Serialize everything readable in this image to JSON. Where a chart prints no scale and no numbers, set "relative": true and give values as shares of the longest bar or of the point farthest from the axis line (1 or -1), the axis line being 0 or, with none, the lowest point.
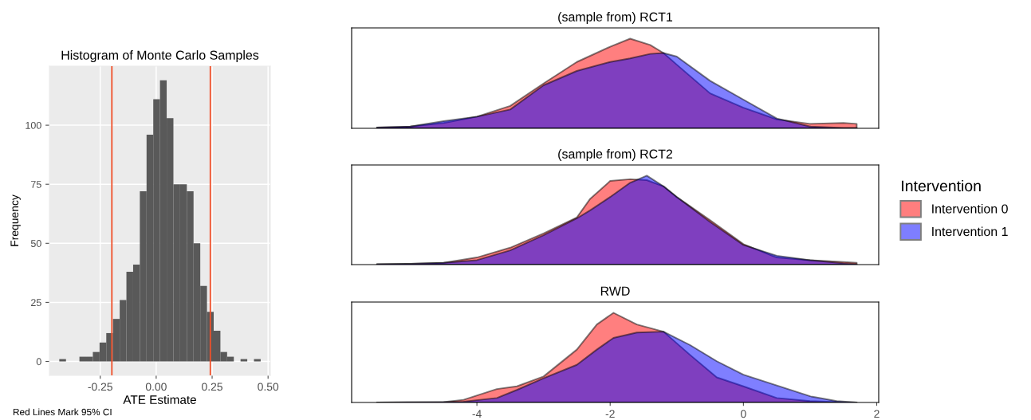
{
  "chart_data": [
    {
      "type": "histogram",
      "title": "Histogram of Monte Carlo Samples",
      "xlabel": "ATE Estimate",
      "ylabel": "Frequency",
      "color": "#595959",
      "bins": [
        -0.433,
        -0.403,
        -0.373,
        -0.343,
        -0.313,
        -0.283,
        -0.253,
        -0.223,
        -0.193,
        -0.163,
        -0.133,
        -0.103,
        -0.073,
        -0.043,
        -0.013,
        0.017,
        0.047,
        0.077,
        0.107,
        0.137,
        0.167,
        0.197,
        0.227,
        0.257,
        0.287,
        0.317,
        0.347,
        0.377,
        0.407,
        0.437,
        0.467
      ],
      "values": [
        1,
        0,
        0,
        2,
        2,
        4,
        8,
        12,
        18,
        26,
        38,
        41,
        72,
        96,
        111,
        119,
        103,
        75,
        75,
        72,
        50,
        32,
        21,
        13,
        4,
        2,
        0,
        1,
        0,
        1
      ],
      "xlim": [
        -0.477,
        0.51
      ],
      "ylim": [
        -5.9,
        125
      ],
      "xticks": [
        -0.25,
        {
          "value": 0,
          "label": "0.00"
        },
        0.25,
        {
          "value": 0.5,
          "label": "0.50"
        }
      ],
      "yticks": [
        0,
        25,
        50,
        75,
        100
      ],
      "grid": true,
      "ref_lines": [
        {
          "axis": "x",
          "value": -0.198,
          "color": "#f0502a"
        },
        {
          "axis": "x",
          "value": 0.242,
          "color": "#f0502a"
        }
      ],
      "annotations": [
        "Red Lines Mark 95% CI"
      ]
    },
    {
      "type": "area",
      "title": "(sample from) RCT1",
      "relative": true,
      "xlim": [
        -5.88,
        2.03
      ],
      "xticks": [
        -4,
        -2,
        0,
        2
      ],
      "tick_labels": false,
      "legend": "right",
      "legend_title": "Intervention",
      "series": [
        {
          "name": "Intervention 0",
          "color": "#ff0000",
          "x": [
            -5.5,
            -5.0,
            -4.5,
            -4.0,
            -3.5,
            -3.0,
            -2.5,
            -2.0,
            -1.7,
            -1.4,
            -1.2,
            -1.0,
            -0.5,
            0.0,
            0.5,
            1.0,
            1.5,
            1.7
          ],
          "values": [
            0.01,
            0.02,
            0.06,
            0.13,
            0.25,
            0.5,
            0.74,
            0.91,
            1.0,
            0.93,
            0.84,
            0.71,
            0.39,
            0.23,
            0.1,
            0.05,
            0.06,
            0.05
          ]
        },
        {
          "name": "Intervention 1",
          "color": "#0000ff",
          "x": [
            -5.5,
            -5.0,
            -4.5,
            -4.0,
            -3.5,
            -3.0,
            -2.5,
            -2.0,
            -1.7,
            -1.4,
            -1.2,
            -1.0,
            -0.5,
            0.0,
            0.5,
            1.0,
            1.5,
            1.7
          ],
          "values": [
            0.01,
            0.02,
            0.08,
            0.13,
            0.21,
            0.48,
            0.64,
            0.74,
            0.78,
            0.83,
            0.84,
            0.8,
            0.53,
            0.32,
            0.11,
            0.02,
            0.005,
            0.005
          ]
        }
      ]
    },
    {
      "type": "area",
      "title": "(sample from) RCT2",
      "relative": true,
      "xlim": [
        -5.88,
        2.03
      ],
      "xticks": [
        -4,
        -2,
        0,
        2
      ],
      "tick_labels": false,
      "series": [
        {
          "color": "#ff0000",
          "x": [
            -5.5,
            -5.0,
            -4.5,
            -4.0,
            -3.5,
            -3.0,
            -2.5,
            -2.3,
            -2.0,
            -1.7,
            -1.45,
            -1.2,
            -1.0,
            -0.5,
            0.0,
            0.5,
            1.0,
            1.5,
            1.7
          ],
          "values": [
            0.005,
            0.01,
            0.02,
            0.08,
            0.19,
            0.35,
            0.53,
            0.74,
            0.94,
            0.96,
            0.95,
            0.88,
            0.76,
            0.5,
            0.23,
            0.08,
            0.05,
            0.03,
            0.02
          ]
        },
        {
          "color": "#0000ff",
          "x": [
            -5.5,
            -5.0,
            -4.5,
            -4.0,
            -3.5,
            -3.0,
            -2.5,
            -2.3,
            -2.0,
            -1.7,
            -1.45,
            -1.2,
            -1.0,
            -0.5,
            0.0,
            0.5,
            1.0,
            1.5,
            1.7
          ],
          "values": [
            0.005,
            0.01,
            0.02,
            0.05,
            0.16,
            0.33,
            0.52,
            0.61,
            0.76,
            0.92,
            1.0,
            0.88,
            0.76,
            0.48,
            0.22,
            0.1,
            0.05,
            0.015,
            0.005
          ]
        }
      ]
    },
    {
      "type": "area",
      "title": "RWD",
      "relative": true,
      "xlim": [
        -5.88,
        2.03
      ],
      "xticks": [
        -4,
        -2,
        0,
        2
      ],
      "tick_labels": "x",
      "series": [
        {
          "color": "#ff0000",
          "x": [
            -5.5,
            -4.5,
            -4.2,
            -3.7,
            -3.4,
            -3.0,
            -2.5,
            -2.2,
            -1.95,
            -1.6,
            -1.2,
            -0.8,
            -0.4,
            0.0,
            0.5,
            1.0,
            1.4,
            1.7
          ],
          "values": [
            0.0,
            0.005,
            0.03,
            0.15,
            0.18,
            0.29,
            0.59,
            0.87,
            1.0,
            0.87,
            0.79,
            0.53,
            0.28,
            0.18,
            0.05,
            0.015,
            0.004,
            0.0
          ]
        },
        {
          "color": "#0000ff",
          "x": [
            -5.5,
            -4.5,
            -4.2,
            -3.7,
            -3.4,
            -3.0,
            -2.5,
            -2.2,
            -1.95,
            -1.6,
            -1.2,
            -0.8,
            -0.4,
            0.0,
            0.5,
            1.0,
            1.4,
            1.7
          ],
          "values": [
            0.0,
            0.005,
            0.01,
            0.05,
            0.14,
            0.27,
            0.42,
            0.59,
            0.72,
            0.78,
            0.79,
            0.64,
            0.46,
            0.31,
            0.19,
            0.07,
            0.015,
            0.0
          ]
        }
      ]
    }
  ]
}
